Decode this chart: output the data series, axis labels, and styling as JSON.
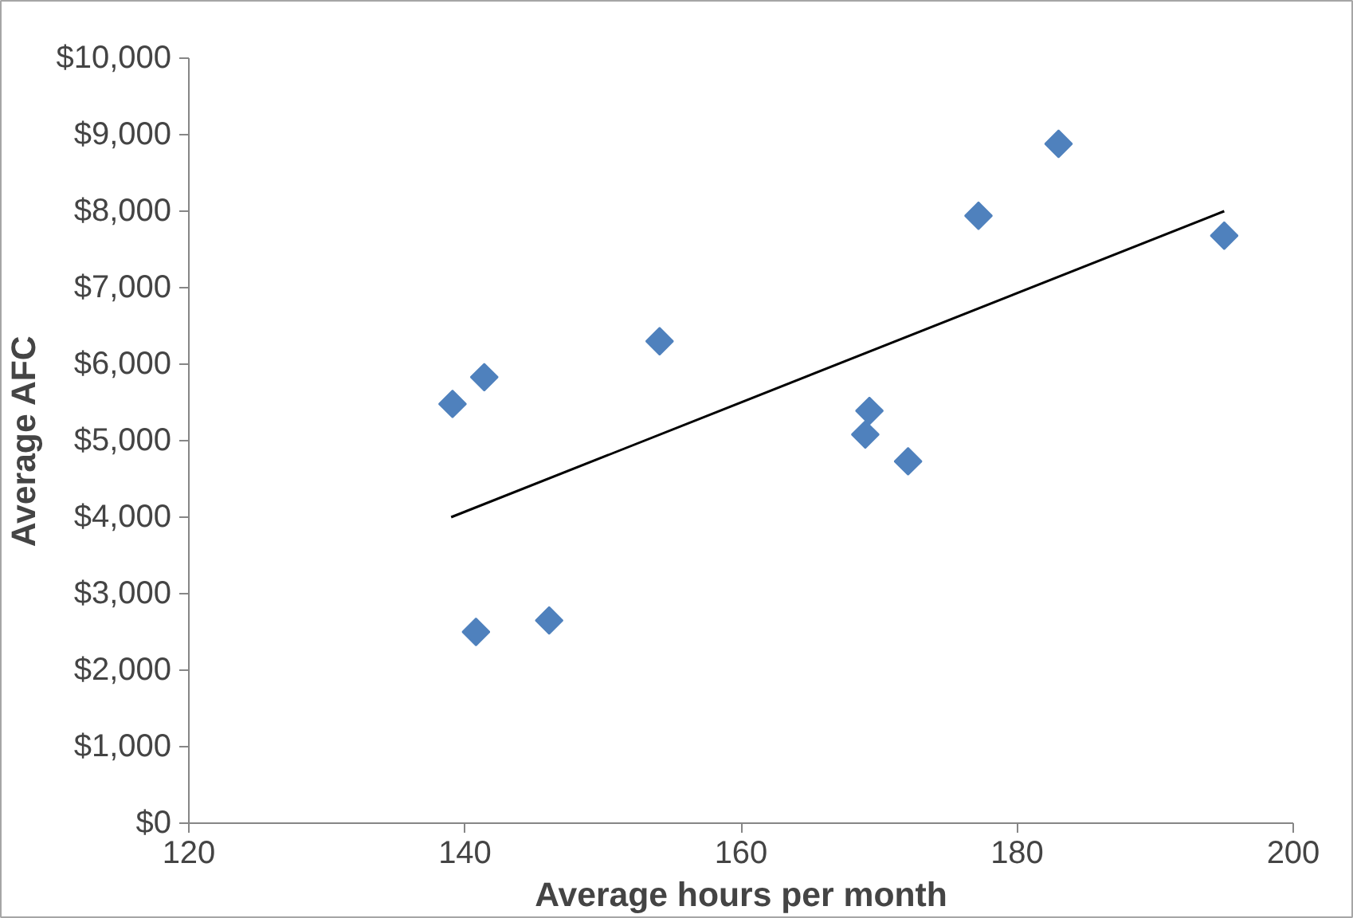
{
  "chart_data": {
    "type": "scatter",
    "xlabel": "Average hours per month",
    "ylabel": "Average AFC",
    "marker": "diamond",
    "grid": false,
    "xlim": [
      120,
      200
    ],
    "xticks": [
      120,
      140,
      160,
      180,
      200
    ],
    "ylim": [
      0,
      10000
    ],
    "yticks": [
      {
        "value": 0,
        "label": "$0"
      },
      {
        "value": 1000,
        "label": "$1,000"
      },
      {
        "value": 2000,
        "label": "$2,000"
      },
      {
        "value": 3000,
        "label": "$3,000"
      },
      {
        "value": 4000,
        "label": "$4,000"
      },
      {
        "value": 5000,
        "label": "$5,000"
      },
      {
        "value": 6000,
        "label": "$6,000"
      },
      {
        "value": 7000,
        "label": "$7,000"
      },
      {
        "value": 8000,
        "label": "$8,000"
      },
      {
        "value": 9000,
        "label": "$9,000"
      },
      {
        "value": 10000,
        "label": "$10,000"
      }
    ],
    "series": [
      {
        "color": "#4f81bd",
        "x": [
          139.1,
          141.4,
          140.8,
          146.1,
          154.1,
          169.3,
          169.0,
          172.1,
          177.2,
          183.0,
          195.0
        ],
        "values": [
          5480,
          5830,
          2500,
          2650,
          6300,
          5390,
          5080,
          4730,
          7940,
          8880,
          7680
        ]
      },
      {
        "type": "line",
        "color": "#000000",
        "marker": "none",
        "x": [
          139.0,
          195.0
        ],
        "values": [
          4000,
          8000
        ]
      }
    ]
  }
}
